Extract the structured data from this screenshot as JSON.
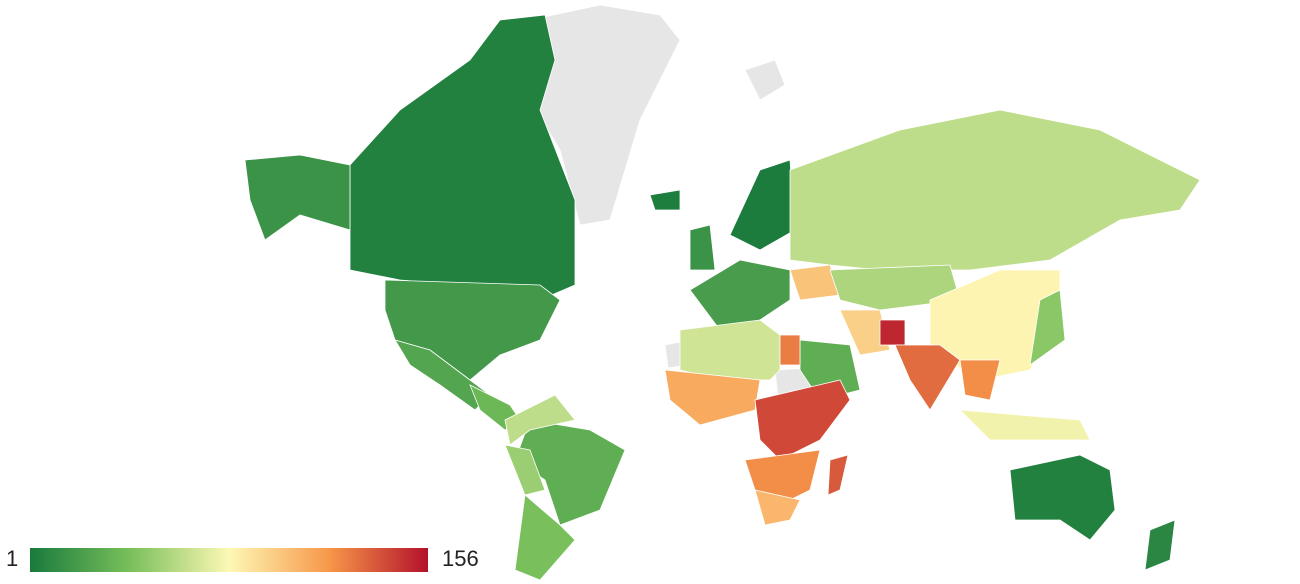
{
  "chart_data": {
    "type": "choropleth",
    "values": [
      5,
      15,
      18,
      25,
      35,
      30,
      60,
      50,
      40,
      3,
      2,
      15,
      20,
      100,
      60,
      55,
      80,
      95,
      30,
      150,
      130,
      120,
      75,
      45,
      5,
      8,
      65,
      110,
      140,
      120,
      105,
      135,
      125
    ],
    "colorbar": {
      "min": 1,
      "max": 156
    },
    "colors": [
      "#197a3d",
      "#78bf5a",
      "#fdf8b5",
      "#f7984a",
      "#b4112b"
    ]
  }
}
